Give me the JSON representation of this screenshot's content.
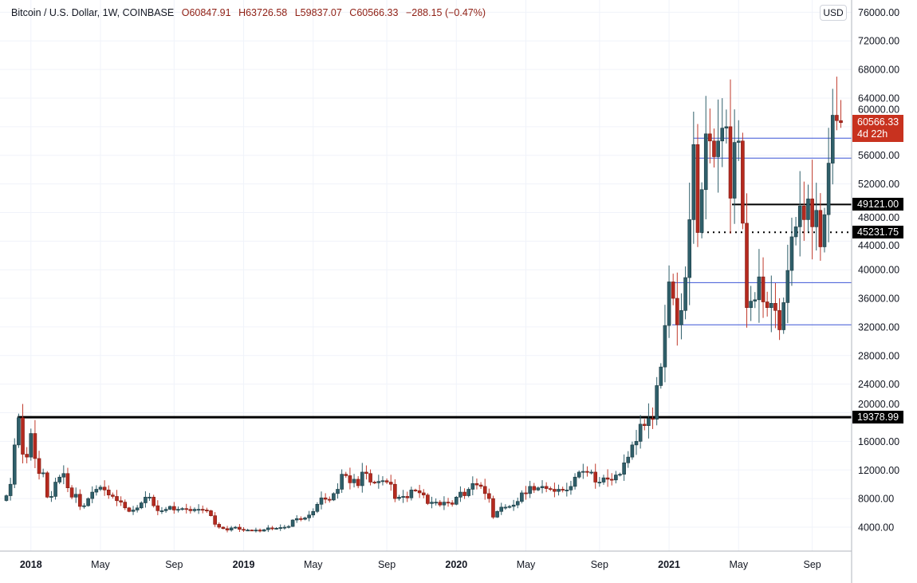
{
  "header": {
    "symbol": "Bitcoin / U.S. Dollar, 1W, COINBASE",
    "open": "O60847.91",
    "high": "H63726.58",
    "low": "L59837.07",
    "close": "C60566.33",
    "change": "−288.15 (−0.47%)"
  },
  "currency_button": "USD",
  "price_tag": {
    "price": "60566.33",
    "countdown": "4d 22h",
    "color": "#c8321f"
  },
  "level_tags": [
    {
      "label": "49121.00",
      "value": 49121
    },
    {
      "label": "45231.75",
      "value": 45231.75
    },
    {
      "label": "19378.99",
      "value": 19378.99
    }
  ],
  "colors": {
    "up": "#2f5f6a",
    "down": "#b52a1f",
    "hline_blue": "#3b55d6",
    "hline_black": "#000000"
  },
  "chart_data": {
    "type": "candlestick",
    "title": "Bitcoin / U.S. Dollar, 1W, COINBASE",
    "ylim": [
      0,
      76000
    ],
    "y_ticks": [
      "4000.00",
      "8000.00",
      "12000.00",
      "16000.00",
      "20000.00",
      "24000.00",
      "28000.00",
      "32000.00",
      "36000.00",
      "40000.00",
      "44000.00",
      "48000.00",
      "52000.00",
      "56000.00",
      "60000.00",
      "64000.00",
      "68000.00",
      "72000.00",
      "76000.00"
    ],
    "x_ticks": [
      "2018",
      "May",
      "Sep",
      "2019",
      "May",
      "Sep",
      "2020",
      "May",
      "Sep",
      "2021",
      "May",
      "Sep"
    ],
    "weekly_close": [
      8400,
      10000,
      15500,
      19300,
      14200,
      13800,
      17100,
      13600,
      11500,
      11600,
      8200,
      8300,
      10300,
      11000,
      11500,
      9500,
      8200,
      8600,
      6900,
      7000,
      8000,
      8900,
      9300,
      9600,
      9200,
      8500,
      8300,
      7700,
      7500,
      6700,
      6200,
      6400,
      6700,
      7400,
      8200,
      8200,
      7000,
      6300,
      6300,
      6500,
      6900,
      6400,
      6500,
      6600,
      6500,
      6300,
      6500,
      6500,
      6400,
      6300,
      5600,
      4400,
      4000,
      3800,
      3600,
      3900,
      4000,
      3700,
      3600,
      3600,
      3550,
      3600,
      3450,
      3650,
      3900,
      3800,
      3850,
      3950,
      4000,
      4100,
      5000,
      5200,
      5100,
      5300,
      5700,
      6200,
      7200,
      8100,
      7900,
      7800,
      8700,
      9300,
      11400,
      11200,
      10200,
      10700,
      9800,
      11700,
      11500,
      10300,
      10200,
      10400,
      10500,
      10300,
      10000,
      8000,
      8200,
      8300,
      8100,
      9200,
      9100,
      8800,
      8500,
      7300,
      7500,
      7500,
      7100,
      7500,
      7400,
      7200,
      8200,
      8900,
      8400,
      9300,
      10100,
      9900,
      9700,
      8700,
      8000,
      5400,
      6200,
      6800,
      6800,
      6900,
      7100,
      7600,
      8800,
      8700,
      9700,
      9200,
      9500,
      9700,
      9400,
      9300,
      9000,
      9300,
      9200,
      9200,
      9700,
      11000,
      11700,
      11800,
      11700,
      11700,
      10300,
      10300,
      10900,
      10700,
      10600,
      11300,
      11400,
      13000,
      13800,
      15500,
      16000,
      18400,
      18200,
      19200,
      19100,
      23800,
      26400,
      32200,
      38300,
      36000,
      32300,
      34300,
      38900,
      47000,
      57500,
      45200,
      51200,
      59000,
      58000,
      55800,
      58000,
      59800,
      60000,
      50000,
      57800,
      58000,
      46500,
      34700,
      35600,
      35800,
      39000,
      35500,
      34700,
      35300,
      34300,
      31600,
      35400,
      39900,
      44600,
      46000,
      48900,
      47000,
      49900,
      46000,
      48300,
      43200,
      47700,
      54900,
      61600,
      60847.91,
      60566.33
    ],
    "last_bar": {
      "open": 60847.91,
      "high": 63726.58,
      "low": 59837.07,
      "close": 60566.33
    },
    "horizontal_levels": [
      {
        "value": 58400,
        "style": "blue"
      },
      {
        "value": 55600,
        "style": "blue"
      },
      {
        "value": 38200,
        "style": "blue"
      },
      {
        "value": 32300,
        "style": "blue"
      },
      {
        "value": 49121,
        "style": "black-solid"
      },
      {
        "value": 45231.75,
        "style": "black-dotted"
      },
      {
        "value": 19378.99,
        "style": "black-solid-thick"
      }
    ]
  }
}
